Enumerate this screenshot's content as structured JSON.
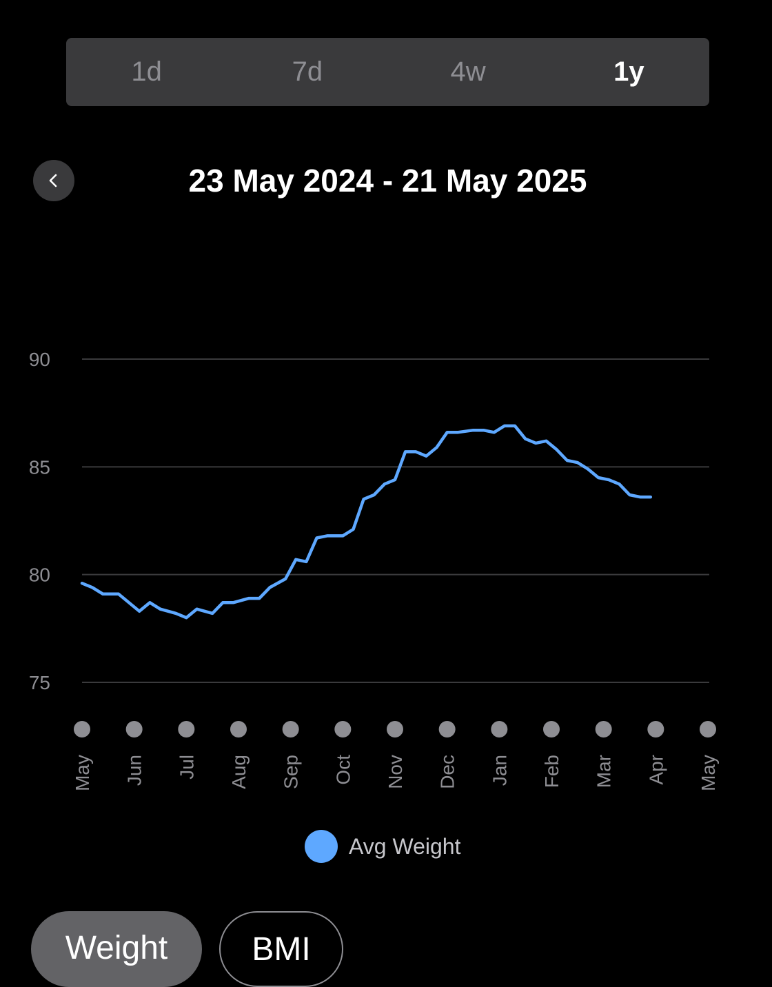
{
  "range_tabs": [
    {
      "label": "1d",
      "active": false
    },
    {
      "label": "7d",
      "active": false
    },
    {
      "label": "4w",
      "active": false
    },
    {
      "label": "1y",
      "active": true
    }
  ],
  "header": {
    "back_icon": "chevron-left-icon",
    "date_range": "23 May 2024 - 21 May 2025"
  },
  "chart_data": {
    "type": "line",
    "title": "",
    "xlabel": "",
    "ylabel": "",
    "x_ticks": [
      "May",
      "Jun",
      "Jul",
      "Aug",
      "Sep",
      "Oct",
      "Nov",
      "Dec",
      "Jan",
      "Feb",
      "Mar",
      "Apr",
      "May"
    ],
    "y_ticks": [
      90,
      85,
      80,
      75
    ],
    "ylim": [
      75,
      90
    ],
    "xlim": [
      0,
      12
    ],
    "grid": true,
    "colors": {
      "line": "#5ea8ff",
      "grid": "#3a3a3c",
      "tick_dot": "#8e8e93"
    },
    "series": [
      {
        "name": "Avg Weight",
        "points": [
          [
            0.0,
            79.6
          ],
          [
            0.2,
            79.4
          ],
          [
            0.4,
            79.1
          ],
          [
            0.7,
            79.1
          ],
          [
            0.9,
            78.7
          ],
          [
            1.1,
            78.3
          ],
          [
            1.3,
            78.7
          ],
          [
            1.5,
            78.4
          ],
          [
            1.8,
            78.2
          ],
          [
            2.0,
            78.0
          ],
          [
            2.2,
            78.4
          ],
          [
            2.5,
            78.2
          ],
          [
            2.7,
            78.7
          ],
          [
            2.9,
            78.7
          ],
          [
            3.2,
            78.9
          ],
          [
            3.4,
            78.9
          ],
          [
            3.6,
            79.4
          ],
          [
            3.9,
            79.8
          ],
          [
            4.1,
            80.7
          ],
          [
            4.3,
            80.6
          ],
          [
            4.5,
            81.7
          ],
          [
            4.7,
            81.8
          ],
          [
            5.0,
            81.8
          ],
          [
            5.2,
            82.1
          ],
          [
            5.4,
            83.5
          ],
          [
            5.6,
            83.7
          ],
          [
            5.8,
            84.2
          ],
          [
            6.0,
            84.4
          ],
          [
            6.2,
            85.7
          ],
          [
            6.4,
            85.7
          ],
          [
            6.6,
            85.5
          ],
          [
            6.8,
            85.9
          ],
          [
            7.0,
            86.6
          ],
          [
            7.2,
            86.6
          ],
          [
            7.5,
            86.7
          ],
          [
            7.7,
            86.7
          ],
          [
            7.9,
            86.6
          ],
          [
            8.1,
            86.9
          ],
          [
            8.3,
            86.9
          ],
          [
            8.5,
            86.3
          ],
          [
            8.7,
            86.1
          ],
          [
            8.9,
            86.2
          ],
          [
            9.1,
            85.8
          ],
          [
            9.3,
            85.3
          ],
          [
            9.5,
            85.2
          ],
          [
            9.7,
            84.9
          ],
          [
            9.9,
            84.5
          ],
          [
            10.1,
            84.4
          ],
          [
            10.3,
            84.2
          ],
          [
            10.5,
            83.7
          ],
          [
            10.7,
            83.6
          ],
          [
            10.9,
            83.6
          ]
        ]
      }
    ],
    "legend": "bottom-center"
  },
  "legend": {
    "label": "Avg Weight"
  },
  "metric_tabs": [
    {
      "label": "Weight",
      "active": true
    },
    {
      "label": "BMI",
      "active": false
    }
  ]
}
